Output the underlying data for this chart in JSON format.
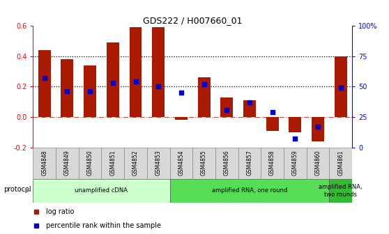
{
  "title": "GDS222 / H007660_01",
  "samples": [
    "GSM4848",
    "GSM4849",
    "GSM4850",
    "GSM4851",
    "GSM4852",
    "GSM4853",
    "GSM4854",
    "GSM4855",
    "GSM4856",
    "GSM4857",
    "GSM4858",
    "GSM4859",
    "GSM4860",
    "GSM4861"
  ],
  "log_ratio": [
    0.44,
    0.38,
    0.34,
    0.49,
    0.59,
    0.59,
    -0.02,
    0.26,
    0.13,
    0.11,
    -0.09,
    -0.1,
    -0.16,
    0.4
  ],
  "percentile_rank": [
    57,
    46,
    46,
    53,
    54,
    50,
    45,
    52,
    31,
    37,
    29,
    7,
    17,
    49
  ],
  "bar_color": "#AA1A00",
  "dot_color": "#0000CC",
  "ylim_left": [
    -0.2,
    0.6
  ],
  "ylim_right": [
    0,
    100
  ],
  "yticks_left": [
    -0.2,
    0.0,
    0.2,
    0.4,
    0.6
  ],
  "yticks_right": [
    0,
    25,
    50,
    75,
    100
  ],
  "ytick_labels_right": [
    "0",
    "25",
    "50",
    "75",
    "100%"
  ],
  "hline_y": 0.0,
  "dotted_lines": [
    0.2,
    0.4
  ],
  "protocols": [
    {
      "label": "unamplified cDNA",
      "start": 0,
      "end": 5,
      "color": "#CCFFCC"
    },
    {
      "label": "amplified RNA, one round",
      "start": 6,
      "end": 12,
      "color": "#55DD55"
    },
    {
      "label": "amplified RNA,\ntwo rounds",
      "start": 13,
      "end": 13,
      "color": "#33BB33"
    }
  ],
  "legend_items": [
    {
      "label": "log ratio",
      "color": "#AA1A00"
    },
    {
      "label": "percentile rank within the sample",
      "color": "#0000CC"
    }
  ],
  "protocol_label": "protocol",
  "background_color": "#FFFFFF",
  "bar_width": 0.55,
  "label_box_color": "#D8D8D8",
  "label_box_edge": "#888888"
}
